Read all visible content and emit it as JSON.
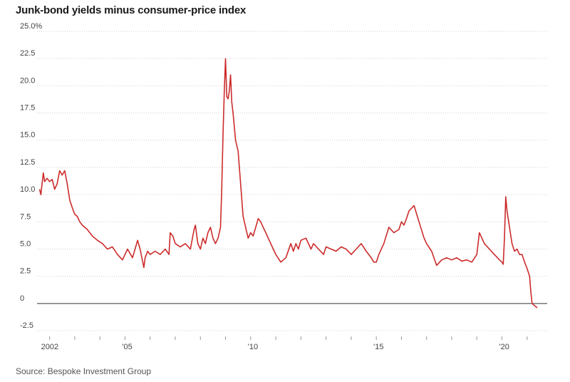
{
  "chart_data": {
    "type": "line",
    "title": "Junk-bond yields minus consumer-price index",
    "source": "Source: Bespoke Investment Group",
    "xlabel": "",
    "ylabel": "",
    "ylim": [
      -2.5,
      25
    ],
    "yticks": [
      "25.0%",
      "22.5",
      "20.0",
      "17.5",
      "15.0",
      "12.5",
      "10.0",
      "7.5",
      "5.0",
      "2.5",
      "0",
      "-2.5"
    ],
    "ytick_values": [
      25,
      22.5,
      20,
      17.5,
      15,
      12.5,
      10,
      7.5,
      5,
      2.5,
      0,
      -2.5
    ],
    "xlim": [
      2001.5,
      2021.8
    ],
    "xticks": [
      {
        "label": "2002",
        "value": 2002
      },
      {
        "label": "'05",
        "value": 2005
      },
      {
        "label": "'10",
        "value": 2010
      },
      {
        "label": "'15",
        "value": 2015
      },
      {
        "label": "'20",
        "value": 2020
      }
    ],
    "grid": true,
    "line_color": "#cc2b2b",
    "series": [
      {
        "name": "",
        "x": [
          2001.6,
          2001.65,
          2001.75,
          2001.8,
          2001.9,
          2002.0,
          2002.1,
          2002.2,
          2002.3,
          2002.4,
          2002.5,
          2002.6,
          2002.7,
          2002.8,
          2002.9,
          2003.0,
          2003.1,
          2003.2,
          2003.3,
          2003.5,
          2003.7,
          2003.9,
          2004.1,
          2004.3,
          2004.5,
          2004.7,
          2004.9,
          2005.0,
          2005.1,
          2005.3,
          2005.5,
          2005.6,
          2005.75,
          2005.8,
          2005.9,
          2006.0,
          2006.2,
          2006.4,
          2006.6,
          2006.75,
          2006.8,
          2006.9,
          2007.0,
          2007.2,
          2007.4,
          2007.6,
          2007.75,
          2007.8,
          2007.9,
          2008.0,
          2008.1,
          2008.2,
          2008.3,
          2008.4,
          2008.5,
          2008.6,
          2008.7,
          2008.8,
          2008.85,
          2008.9,
          2008.95,
          2009.0,
          2009.05,
          2009.1,
          2009.15,
          2009.2,
          2009.25,
          2009.3,
          2009.4,
          2009.5,
          2009.6,
          2009.7,
          2009.8,
          2009.9,
          2010.0,
          2010.1,
          2010.2,
          2010.3,
          2010.4,
          2010.5,
          2010.6,
          2010.7,
          2010.8,
          2010.9,
          2011.0,
          2011.2,
          2011.4,
          2011.6,
          2011.7,
          2011.8,
          2011.9,
          2012.0,
          2012.2,
          2012.4,
          2012.5,
          2012.7,
          2012.9,
          2013.0,
          2013.2,
          2013.4,
          2013.6,
          2013.8,
          2014.0,
          2014.2,
          2014.4,
          2014.6,
          2014.8,
          2014.9,
          2015.0,
          2015.1,
          2015.3,
          2015.5,
          2015.7,
          2015.9,
          2016.0,
          2016.1,
          2016.2,
          2016.3,
          2016.5,
          2016.7,
          2016.9,
          2017.0,
          2017.2,
          2017.4,
          2017.6,
          2017.8,
          2018.0,
          2018.2,
          2018.4,
          2018.6,
          2018.8,
          2019.0,
          2019.1,
          2019.3,
          2019.5,
          2019.7,
          2019.9,
          2020.0,
          2020.05,
          2020.1,
          2020.15,
          2020.2,
          2020.3,
          2020.4,
          2020.5,
          2020.6,
          2020.7,
          2020.8,
          2020.9,
          2021.0,
          2021.1,
          2021.15,
          2021.2,
          2021.3,
          2021.4
        ],
        "values": [
          10.5,
          10.0,
          12.0,
          11.2,
          11.5,
          11.2,
          11.4,
          10.5,
          11.0,
          12.2,
          11.8,
          12.2,
          11.0,
          9.5,
          8.8,
          8.2,
          8.0,
          7.5,
          7.2,
          6.8,
          6.2,
          5.8,
          5.5,
          5.0,
          5.2,
          4.5,
          4.0,
          4.5,
          5.0,
          4.2,
          5.8,
          5.0,
          3.3,
          4.2,
          4.8,
          4.5,
          4.8,
          4.5,
          5.0,
          4.5,
          6.5,
          6.2,
          5.5,
          5.2,
          5.5,
          5.0,
          6.8,
          7.2,
          5.5,
          5.0,
          6.0,
          5.5,
          6.5,
          7.0,
          6.0,
          5.5,
          6.0,
          7.0,
          10.5,
          15.5,
          19.5,
          22.5,
          19.0,
          18.8,
          19.5,
          21.0,
          18.5,
          17.5,
          15.0,
          14.0,
          11.0,
          8.0,
          7.0,
          6.0,
          6.5,
          6.2,
          7.0,
          7.8,
          7.5,
          7.0,
          6.5,
          6.0,
          5.5,
          5.0,
          4.5,
          3.8,
          4.2,
          5.5,
          4.8,
          5.5,
          5.0,
          5.8,
          6.0,
          5.0,
          5.5,
          5.0,
          4.5,
          5.2,
          5.0,
          4.8,
          5.2,
          5.0,
          4.5,
          5.0,
          5.5,
          4.8,
          4.2,
          3.8,
          3.8,
          4.5,
          5.5,
          7.0,
          6.5,
          6.8,
          7.5,
          7.2,
          7.8,
          8.5,
          9.0,
          7.5,
          6.0,
          5.5,
          4.8,
          3.5,
          4.0,
          4.2,
          4.0,
          4.2,
          3.9,
          4.0,
          3.8,
          4.5,
          6.5,
          5.5,
          5.0,
          4.5,
          4.0,
          3.8,
          3.6,
          6.0,
          9.8,
          8.5,
          7.0,
          5.5,
          4.8,
          5.0,
          4.5,
          4.5,
          3.8,
          3.2,
          2.5,
          1.0,
          0.0,
          -0.2,
          -0.4
        ]
      }
    ]
  }
}
